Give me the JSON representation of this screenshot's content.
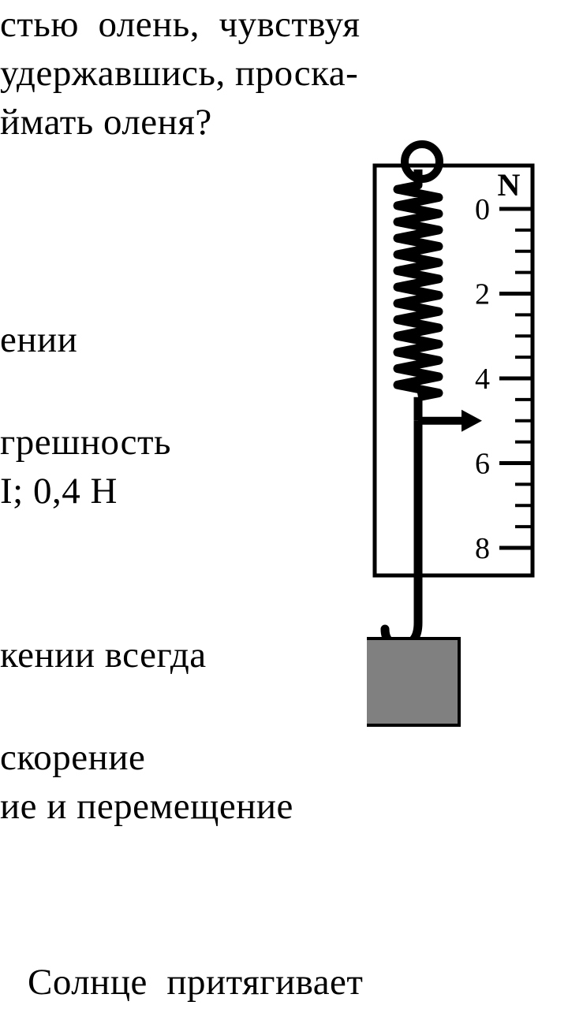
{
  "text": {
    "line1": "стью  олень,  чувствуя",
    "line2": "удержавшись, проска-",
    "line3": "ймать оленя?",
    "line4": "ении",
    "line5a": "грешность",
    "line5b": "I; 0,4 Н",
    "line6": "кении всегда",
    "line7a": "скорение",
    "line7b": "ие и перемещение",
    "line8": "Солнце  притягивает"
  },
  "diagram": {
    "unit": "N",
    "scale_major": [
      "0",
      "2",
      "4",
      "6",
      "8"
    ],
    "spring": {
      "coils": 13,
      "pointer_at_value": 5
    },
    "colors": {
      "stroke": "#000000",
      "weight_fill": "#808080",
      "background": "#ffffff"
    }
  }
}
